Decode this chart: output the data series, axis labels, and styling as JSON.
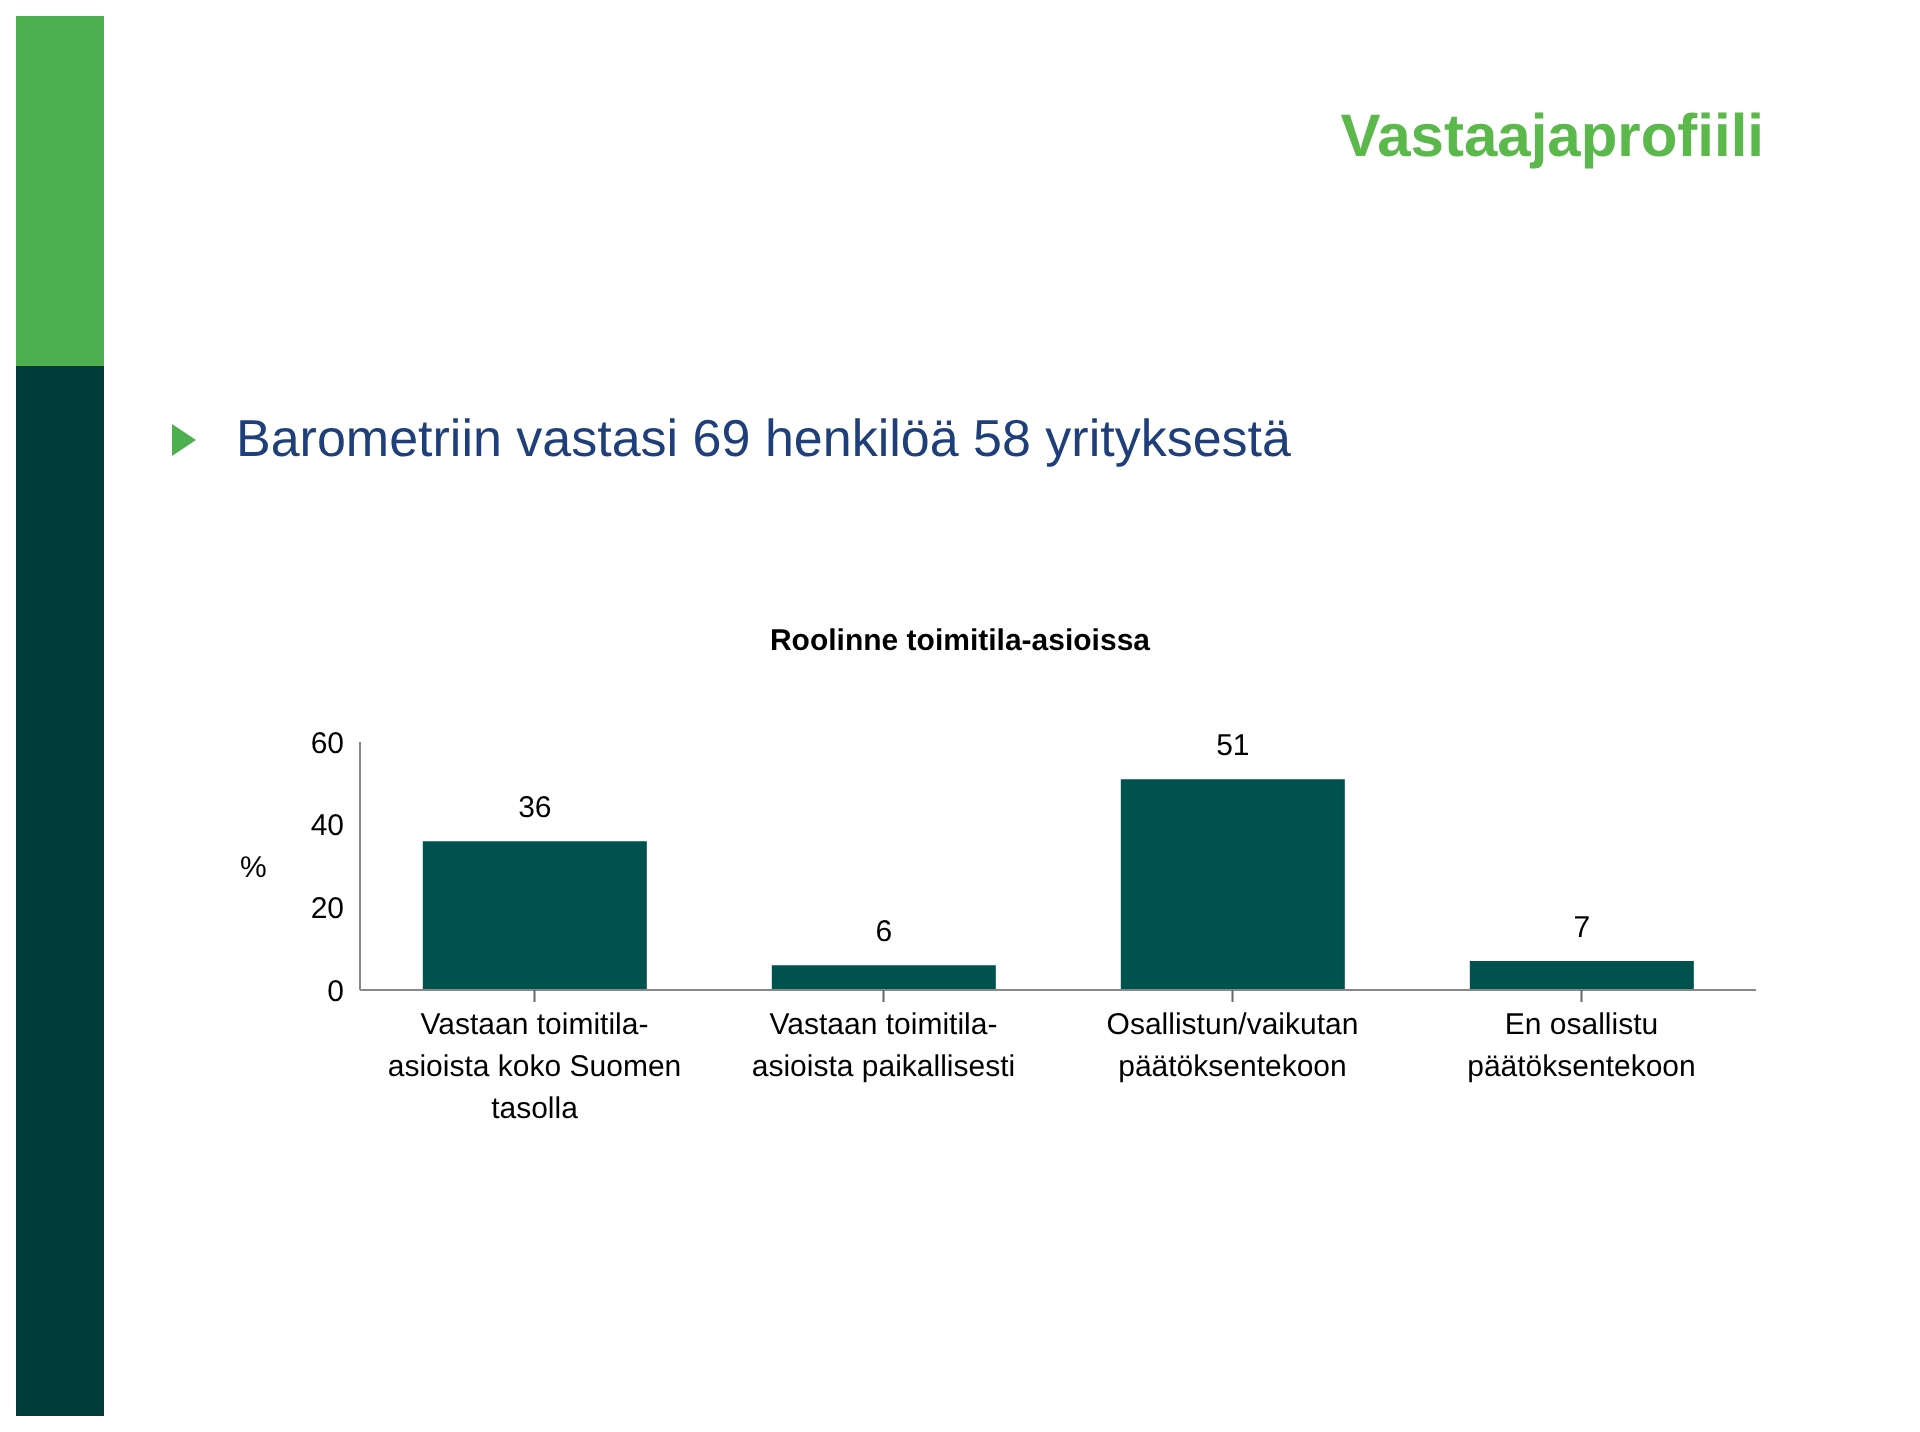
{
  "chart_data": {
    "type": "bar",
    "title": "Vastaajaprofiili",
    "subtitle": "Barometriin vastasi 69 henkilöä 58 yrityksestä",
    "annotations": [
      "Roolinne toimitila-asioissa"
    ],
    "categories": [
      "Vastaan toimitila-asioista koko Suomen tasolla",
      "Vastaan toimitila-asioista paikallisesti",
      "Osallistun/vaikutan päätöksentekoon",
      "En osallistu päätöksentekoon"
    ],
    "values": [
      36,
      6,
      51,
      7
    ],
    "color": "#00524f",
    "ylabel": "%",
    "ylim": [
      0,
      60
    ],
    "yticks": [
      0,
      20,
      40,
      60
    ],
    "grid": false,
    "data_labels": true
  }
}
